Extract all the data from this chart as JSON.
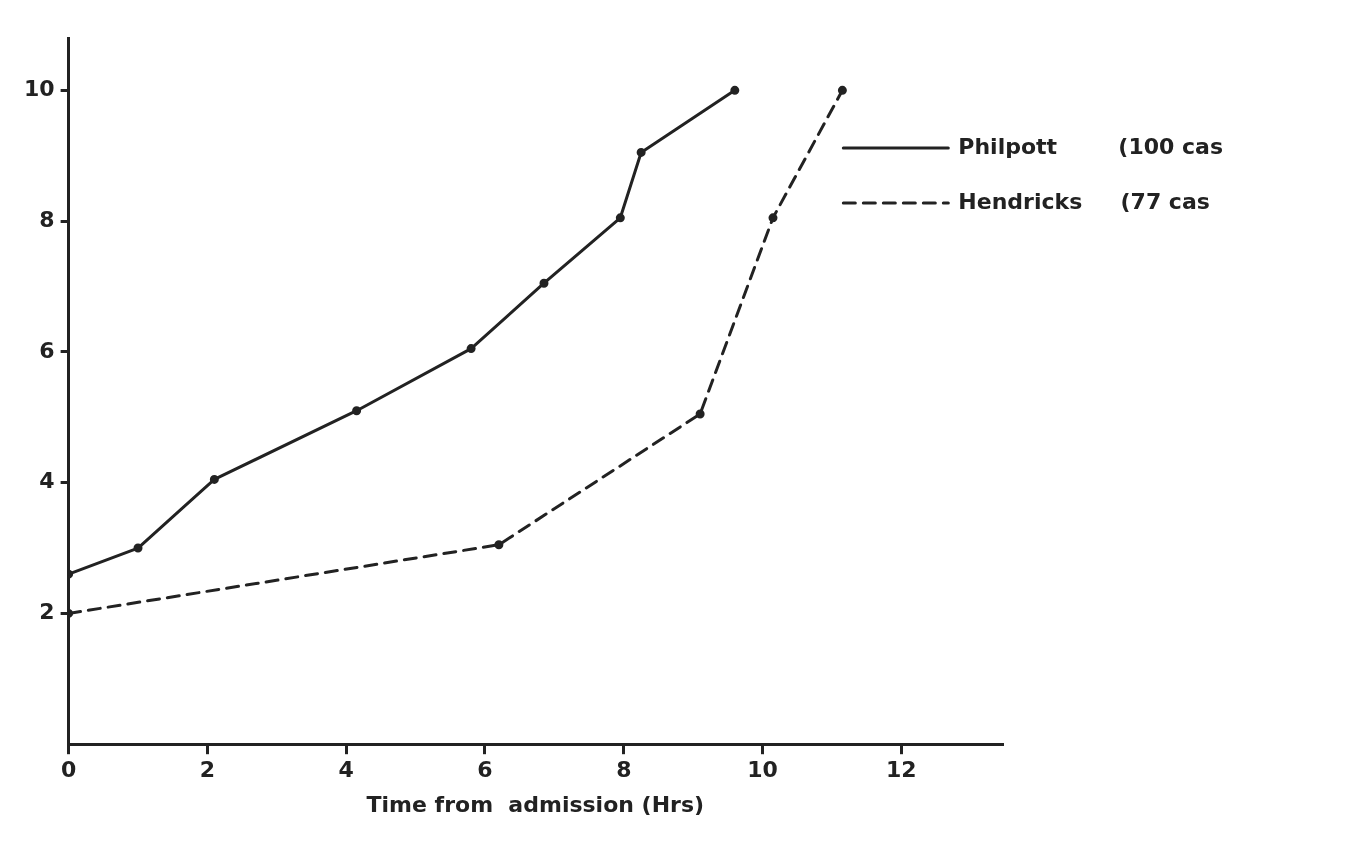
{
  "chart_data": {
    "type": "line",
    "xlabel": "Time from  admission (Hrs)",
    "xlim": [
      0,
      13.45
    ],
    "xticks": [
      0,
      2,
      4,
      6,
      8,
      10,
      12
    ],
    "ylim": [
      0,
      10.8
    ],
    "yticks": [
      2,
      4,
      6,
      8,
      10
    ],
    "grid": false,
    "legend": "top right",
    "marker": "circle",
    "series": [
      {
        "name": "Philpott        (100 cas",
        "color": "#222222",
        "line_style": "solid",
        "x": [
          0,
          1,
          2.1,
          4.15,
          5.8,
          6.85,
          7.95,
          8.25,
          9.6
        ],
        "values": [
          2.6,
          3,
          4.05,
          5.1,
          6.05,
          7.05,
          8.05,
          9.05,
          10
        ]
      },
      {
        "name": "Hendricks     (77 cas",
        "color": "#222222",
        "line_style": "dashed",
        "x": [
          0,
          6.2,
          9.1,
          10.15,
          11.15
        ],
        "values": [
          2,
          3.05,
          5.05,
          8.05,
          10
        ]
      }
    ]
  }
}
